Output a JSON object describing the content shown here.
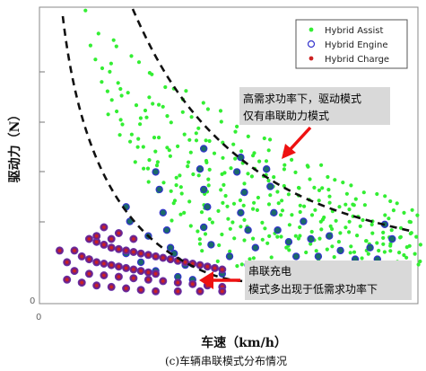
{
  "chart_data": {
    "type": "scatter",
    "title": "",
    "xlabel": "车速（km/h）",
    "ylabel": "驱动力（N）",
    "caption": "(c)车辆串联模式分布情况",
    "x_ticks": [
      "0"
    ],
    "y_ticks": [
      "0"
    ],
    "xlim": [
      0,
      100
    ],
    "ylim": [
      0,
      100
    ],
    "grid": false,
    "legend_position": "top-right",
    "legend": [
      {
        "name": "Hybrid Assist",
        "marker": "dot",
        "color": "#33ee33"
      },
      {
        "name": "Hybrid Engine",
        "marker": "circle",
        "color": "#3333cc"
      },
      {
        "name": "Hybrid Charge",
        "marker": "dot",
        "color": "#cc2222"
      }
    ],
    "annotations": [
      {
        "lines": [
          "高需求功率下，驱动模式",
          "仅有串联助力模式"
        ]
      },
      {
        "lines": [
          "串联充电",
          "模式多出现于低需求功率下"
        ]
      }
    ],
    "series": [
      {
        "name": "Hybrid Assist",
        "bands": [
          {
            "from": [
              13,
              98
            ],
            "to": [
              100,
              30
            ],
            "n": 38
          },
          {
            "from": [
              12,
              88
            ],
            "to": [
              100,
              26
            ],
            "n": 38
          },
          {
            "from": [
              14,
              80
            ],
            "to": [
              100,
              23
            ],
            "n": 36
          },
          {
            "from": [
              15,
              72
            ],
            "to": [
              100,
              21
            ],
            "n": 36
          },
          {
            "from": [
              17,
              64
            ],
            "to": [
              100,
              19
            ],
            "n": 34
          },
          {
            "from": [
              19,
              57
            ],
            "to": [
              100,
              17
            ],
            "n": 32
          },
          {
            "from": [
              23,
              49
            ],
            "to": [
              100,
              15
            ],
            "n": 30
          },
          {
            "from": [
              28,
              41
            ],
            "to": [
              100,
              13
            ],
            "n": 28
          },
          {
            "from": [
              33,
              34
            ],
            "to": [
              100,
              11
            ],
            "n": 26
          },
          {
            "from": [
              36,
              28
            ],
            "to": [
              100,
              9
            ],
            "n": 22
          },
          {
            "from": [
              40,
              21
            ],
            "to": [
              95,
              7
            ],
            "n": 20
          },
          {
            "from": [
              44,
              17
            ],
            "to": [
              80,
              5
            ],
            "n": 14
          }
        ]
      },
      {
        "name": "Hybrid Engine",
        "points": [
          [
            43,
            52
          ],
          [
            42,
            45
          ],
          [
            43,
            38
          ],
          [
            44,
            32
          ],
          [
            43,
            25
          ],
          [
            45,
            19
          ],
          [
            46,
            11
          ],
          [
            48,
            9
          ],
          [
            53,
            49
          ],
          [
            52,
            44
          ],
          [
            54,
            37
          ],
          [
            53,
            30
          ],
          [
            55,
            24
          ],
          [
            57,
            18
          ],
          [
            55,
            12
          ],
          [
            60,
            45
          ],
          [
            61,
            39
          ],
          [
            62,
            30
          ],
          [
            63,
            24
          ],
          [
            66,
            20
          ],
          [
            68,
            15
          ],
          [
            70,
            27
          ],
          [
            72,
            21
          ],
          [
            74,
            15
          ],
          [
            77,
            22
          ],
          [
            80,
            17
          ],
          [
            84,
            14
          ],
          [
            30,
            44
          ],
          [
            31,
            38
          ],
          [
            32,
            30
          ],
          [
            33,
            24
          ],
          [
            34,
            18
          ],
          [
            22,
            32
          ],
          [
            23,
            27
          ],
          [
            28,
            22
          ],
          [
            35,
            16
          ],
          [
            38,
            12
          ],
          [
            50,
            15
          ],
          [
            58,
            9
          ],
          [
            88,
            18
          ],
          [
            90,
            14
          ],
          [
            92,
            26
          ],
          [
            94,
            21
          ],
          [
            96,
            12
          ],
          [
            22,
            16
          ],
          [
            26,
            13
          ],
          [
            30,
            10
          ],
          [
            36,
            8
          ],
          [
            40,
            7
          ],
          [
            28,
            7
          ]
        ]
      },
      {
        "name": "Hybrid Charge",
        "points": [
          [
            12,
            21
          ],
          [
            14,
            20
          ],
          [
            16,
            19
          ],
          [
            18,
            18
          ],
          [
            20,
            17.5
          ],
          [
            22,
            17
          ],
          [
            24,
            16.5
          ],
          [
            26,
            16
          ],
          [
            28,
            15.5
          ],
          [
            30,
            15
          ],
          [
            32,
            14.5
          ],
          [
            34,
            14
          ],
          [
            36,
            13.5
          ],
          [
            38,
            13
          ],
          [
            40,
            12.5
          ],
          [
            42,
            12
          ],
          [
            44,
            11.5
          ],
          [
            46,
            11
          ],
          [
            48,
            10.5
          ],
          [
            8,
            17
          ],
          [
            10,
            15
          ],
          [
            12,
            14
          ],
          [
            14,
            13
          ],
          [
            16,
            12.5
          ],
          [
            18,
            12
          ],
          [
            20,
            11.5
          ],
          [
            22,
            11
          ],
          [
            24,
            10.5
          ],
          [
            26,
            10
          ],
          [
            28,
            9.5
          ],
          [
            30,
            9
          ],
          [
            8,
            10
          ],
          [
            12,
            9
          ],
          [
            16,
            8.5
          ],
          [
            20,
            8
          ],
          [
            24,
            7.5
          ],
          [
            28,
            7
          ],
          [
            32,
            6.5
          ],
          [
            36,
            6
          ],
          [
            40,
            5.5
          ],
          [
            44,
            5
          ],
          [
            48,
            4.5
          ],
          [
            4,
            17
          ],
          [
            6,
            13
          ],
          [
            6,
            7
          ],
          [
            10,
            6
          ],
          [
            14,
            5
          ],
          [
            18,
            4.5
          ],
          [
            22,
            4
          ],
          [
            26,
            3.5
          ],
          [
            30,
            3
          ],
          [
            36,
            3
          ],
          [
            42,
            3
          ],
          [
            48,
            3
          ],
          [
            16,
            25
          ],
          [
            20,
            23
          ],
          [
            24,
            21
          ],
          [
            14,
            22
          ],
          [
            18,
            21
          ]
        ]
      }
    ]
  }
}
